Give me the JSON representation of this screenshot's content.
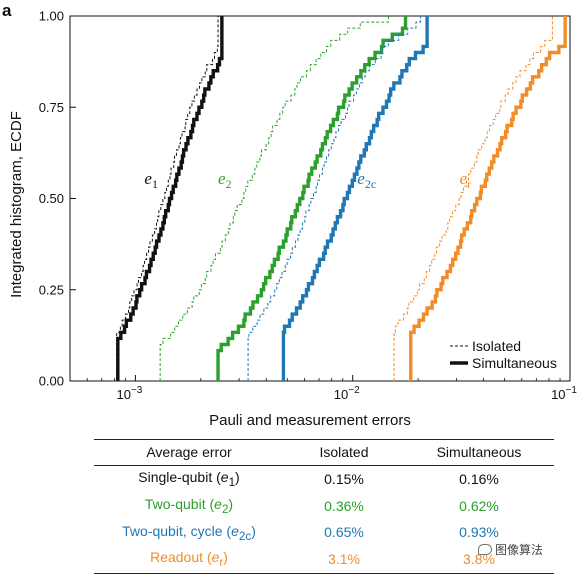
{
  "chart_data": {
    "type": "line",
    "panel_label": "a",
    "xlabel": "Pauli and measurement errors",
    "ylabel": "Integrated histogram, ECDF",
    "xscale": "log",
    "xlim": [
      0.0005,
      0.1
    ],
    "ylim": [
      0,
      1
    ],
    "x_ticks": [
      {
        "value": 0.001,
        "base": "10",
        "exp": "−3"
      },
      {
        "value": 0.01,
        "base": "10",
        "exp": "−2"
      },
      {
        "value": 0.1,
        "base": "10",
        "exp": "−1"
      }
    ],
    "y_ticks": [
      "0.00",
      "0.25",
      "0.50",
      "0.75",
      "1.00"
    ],
    "legend": {
      "placement": "bottom-right",
      "entries": [
        {
          "label": "Isolated",
          "style": "dashed-thin"
        },
        {
          "label": "Simultaneous",
          "style": "solid-thick"
        }
      ]
    },
    "series": [
      {
        "label_main": "e",
        "label_sub": "1",
        "color": "#111111",
        "label_pos": [
          0.0011,
          0.54
        ],
        "isolated": {
          "median": 0.00135,
          "sigma": 0.19,
          "min": 0.00082,
          "max": 0.0024
        },
        "simultaneous": {
          "median": 0.00145,
          "sigma": 0.2,
          "min": 0.00083,
          "max": 0.0025
        }
      },
      {
        "label_main": "e",
        "label_sub": "2",
        "color": "#2ca02c",
        "label_pos": [
          0.0024,
          0.54
        ],
        "isolated": {
          "median": 0.0031,
          "sigma": 0.29,
          "min": 0.0013,
          "max": 0.0146
        },
        "simultaneous": {
          "median": 0.0058,
          "sigma": 0.27,
          "min": 0.0024,
          "max": 0.0175
        }
      },
      {
        "label_main": "e",
        "label_sub": "2c",
        "color": "#1f77b4",
        "label_pos": [
          0.0105,
          0.54
        ],
        "isolated": {
          "median": 0.0065,
          "sigma": 0.25,
          "min": 0.0033,
          "max": 0.0205
        },
        "simultaneous": {
          "median": 0.0093,
          "sigma": 0.26,
          "min": 0.0048,
          "max": 0.022
        }
      },
      {
        "label_main": "e",
        "label_sub": "r",
        "color": "#f28c28",
        "label_pos": [
          0.031,
          0.54
        ],
        "isolated": {
          "median": 0.031,
          "sigma": 0.28,
          "min": 0.0155,
          "max": 0.083
        },
        "simultaneous": {
          "median": 0.038,
          "sigma": 0.27,
          "min": 0.0185,
          "max": 0.095
        }
      }
    ]
  },
  "table": {
    "headers": [
      "Average error",
      "Isolated",
      "Simultaneous"
    ],
    "rows": [
      {
        "label": "Single-qubit (",
        "var": "e",
        "sub": "1",
        "close": ")",
        "isolated": "0.15%",
        "simultaneous": "0.16%",
        "color": "#111111"
      },
      {
        "label": "Two-qubit (",
        "var": "e",
        "sub": "2",
        "close": ")",
        "isolated": "0.36%",
        "simultaneous": "0.62%",
        "color": "#2ca02c"
      },
      {
        "label": "Two-qubit, cycle (",
        "var": "e",
        "sub": "2c",
        "close": ")",
        "isolated": "0.65%",
        "simultaneous": "0.93%",
        "color": "#1f77b4"
      },
      {
        "label": "Readout (",
        "var": "e",
        "sub": "r",
        "close": ")",
        "isolated": "3.1%",
        "simultaneous": "3.8%",
        "color": "#f28c28"
      }
    ]
  },
  "watermark": {
    "icon": "chat-bubble-icon",
    "text": "图像算法"
  }
}
